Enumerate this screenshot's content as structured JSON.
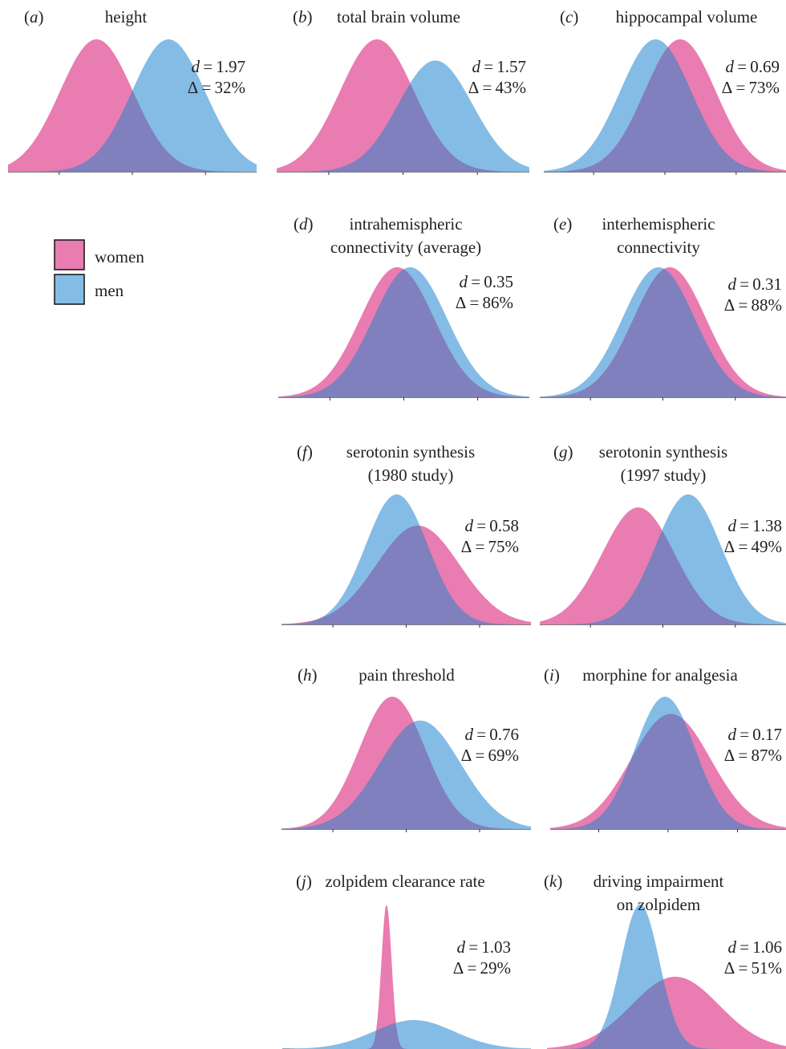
{
  "colors": {
    "women": "#e97cb0",
    "men": "#84bce6",
    "overlap": "#7f80bd"
  },
  "legend": {
    "items": [
      {
        "label": "women",
        "color": "#e97cb0"
      },
      {
        "label": "men",
        "color": "#84bce6"
      }
    ]
  },
  "chart_data": [
    {
      "type": "area",
      "panel_label": "(a)",
      "title_lines": [
        "height"
      ],
      "d": "1.97",
      "delta": "32%",
      "series": [
        {
          "name": "women",
          "mean": -0.98,
          "sd": 1.0,
          "peak": 1.0
        },
        {
          "name": "men",
          "mean": 0.99,
          "sd": 1.0,
          "peak": 1.0
        }
      ]
    },
    {
      "type": "area",
      "panel_label": "(b)",
      "title_lines": [
        "total brain volume"
      ],
      "d": "1.57",
      "delta": "43%",
      "series": [
        {
          "name": "women",
          "mean": -0.7,
          "sd": 1.0,
          "peak": 1.0
        },
        {
          "name": "men",
          "mean": 0.87,
          "sd": 1.0,
          "peak": 0.84
        }
      ]
    },
    {
      "type": "area",
      "panel_label": "(c)",
      "title_lines": [
        "hippocampal volume"
      ],
      "d": "0.69",
      "delta": "73%",
      "series": [
        {
          "name": "men",
          "mean": -0.26,
          "sd": 1.0,
          "peak": 1.0
        },
        {
          "name": "women",
          "mean": 0.43,
          "sd": 1.0,
          "peak": 1.0
        }
      ]
    },
    {
      "type": "area",
      "panel_label": "(d)",
      "title_lines": [
        "intrahemispheric",
        "connectivity (average)"
      ],
      "d": "0.35",
      "delta": "86%",
      "series": [
        {
          "name": "women",
          "mean": -0.18,
          "sd": 1.0,
          "peak": 1.0
        },
        {
          "name": "men",
          "mean": 0.17,
          "sd": 1.0,
          "peak": 1.0
        }
      ]
    },
    {
      "type": "area",
      "panel_label": "(e)",
      "title_lines": [
        "interhemispheric",
        "connectivity"
      ],
      "d": "0.31",
      "delta": "88%",
      "series": [
        {
          "name": "men",
          "mean": -0.12,
          "sd": 1.0,
          "peak": 1.0
        },
        {
          "name": "women",
          "mean": 0.19,
          "sd": 1.0,
          "peak": 1.0
        }
      ]
    },
    {
      "type": "area",
      "panel_label": "(f)",
      "title_lines": [
        "serotonin synthesis",
        "(1980 study)"
      ],
      "d": "0.58",
      "delta": "75%",
      "series": [
        {
          "name": "men",
          "mean": -0.26,
          "sd": 0.85,
          "peak": 1.0
        },
        {
          "name": "women",
          "mean": 0.32,
          "sd": 1.13,
          "peak": 0.76
        }
      ]
    },
    {
      "type": "area",
      "panel_label": "(g)",
      "title_lines": [
        "serotonin synthesis",
        "(1997 study)"
      ],
      "d": "1.38",
      "delta": "49%",
      "series": [
        {
          "name": "women",
          "mean": -0.68,
          "sd": 1.0,
          "peak": 0.9
        },
        {
          "name": "men",
          "mean": 0.7,
          "sd": 0.9,
          "peak": 1.0
        }
      ]
    },
    {
      "type": "area",
      "panel_label": "(h)",
      "title_lines": [
        "pain threshold"
      ],
      "d": "0.76",
      "delta": "69%",
      "series": [
        {
          "name": "women",
          "mean": -0.38,
          "sd": 0.9,
          "peak": 1.0
        },
        {
          "name": "men",
          "mean": 0.38,
          "sd": 1.1,
          "peak": 0.82
        }
      ]
    },
    {
      "type": "area",
      "panel_label": "(i)",
      "title_lines": [
        "morphine for analgesia"
      ],
      "d": "0.17",
      "delta": "87%",
      "series": [
        {
          "name": "women",
          "mean": 0.08,
          "sd": 1.15,
          "peak": 0.87
        },
        {
          "name": "men",
          "mean": -0.09,
          "sd": 0.87,
          "peak": 1.0
        }
      ]
    },
    {
      "type": "area",
      "panel_label": "(j)",
      "title_lines": [
        "zolpidem clearance rate"
      ],
      "d": "1.03",
      "delta": "29%",
      "series": [
        {
          "name": "men",
          "mean": 0.2,
          "sd": 1.1,
          "peak": 0.2
        },
        {
          "name": "women",
          "mean": -0.55,
          "sd": 0.14,
          "peak": 1.0
        }
      ]
    },
    {
      "type": "area",
      "panel_label": "(k)",
      "title_lines": [
        "driving impairment",
        "on zolpidem"
      ],
      "d": "1.06",
      "delta": "51%",
      "series": [
        {
          "name": "women",
          "mean": 0.25,
          "sd": 1.25,
          "peak": 0.5
        },
        {
          "name": "men",
          "mean": -0.75,
          "sd": 0.55,
          "peak": 1.0
        }
      ]
    }
  ]
}
